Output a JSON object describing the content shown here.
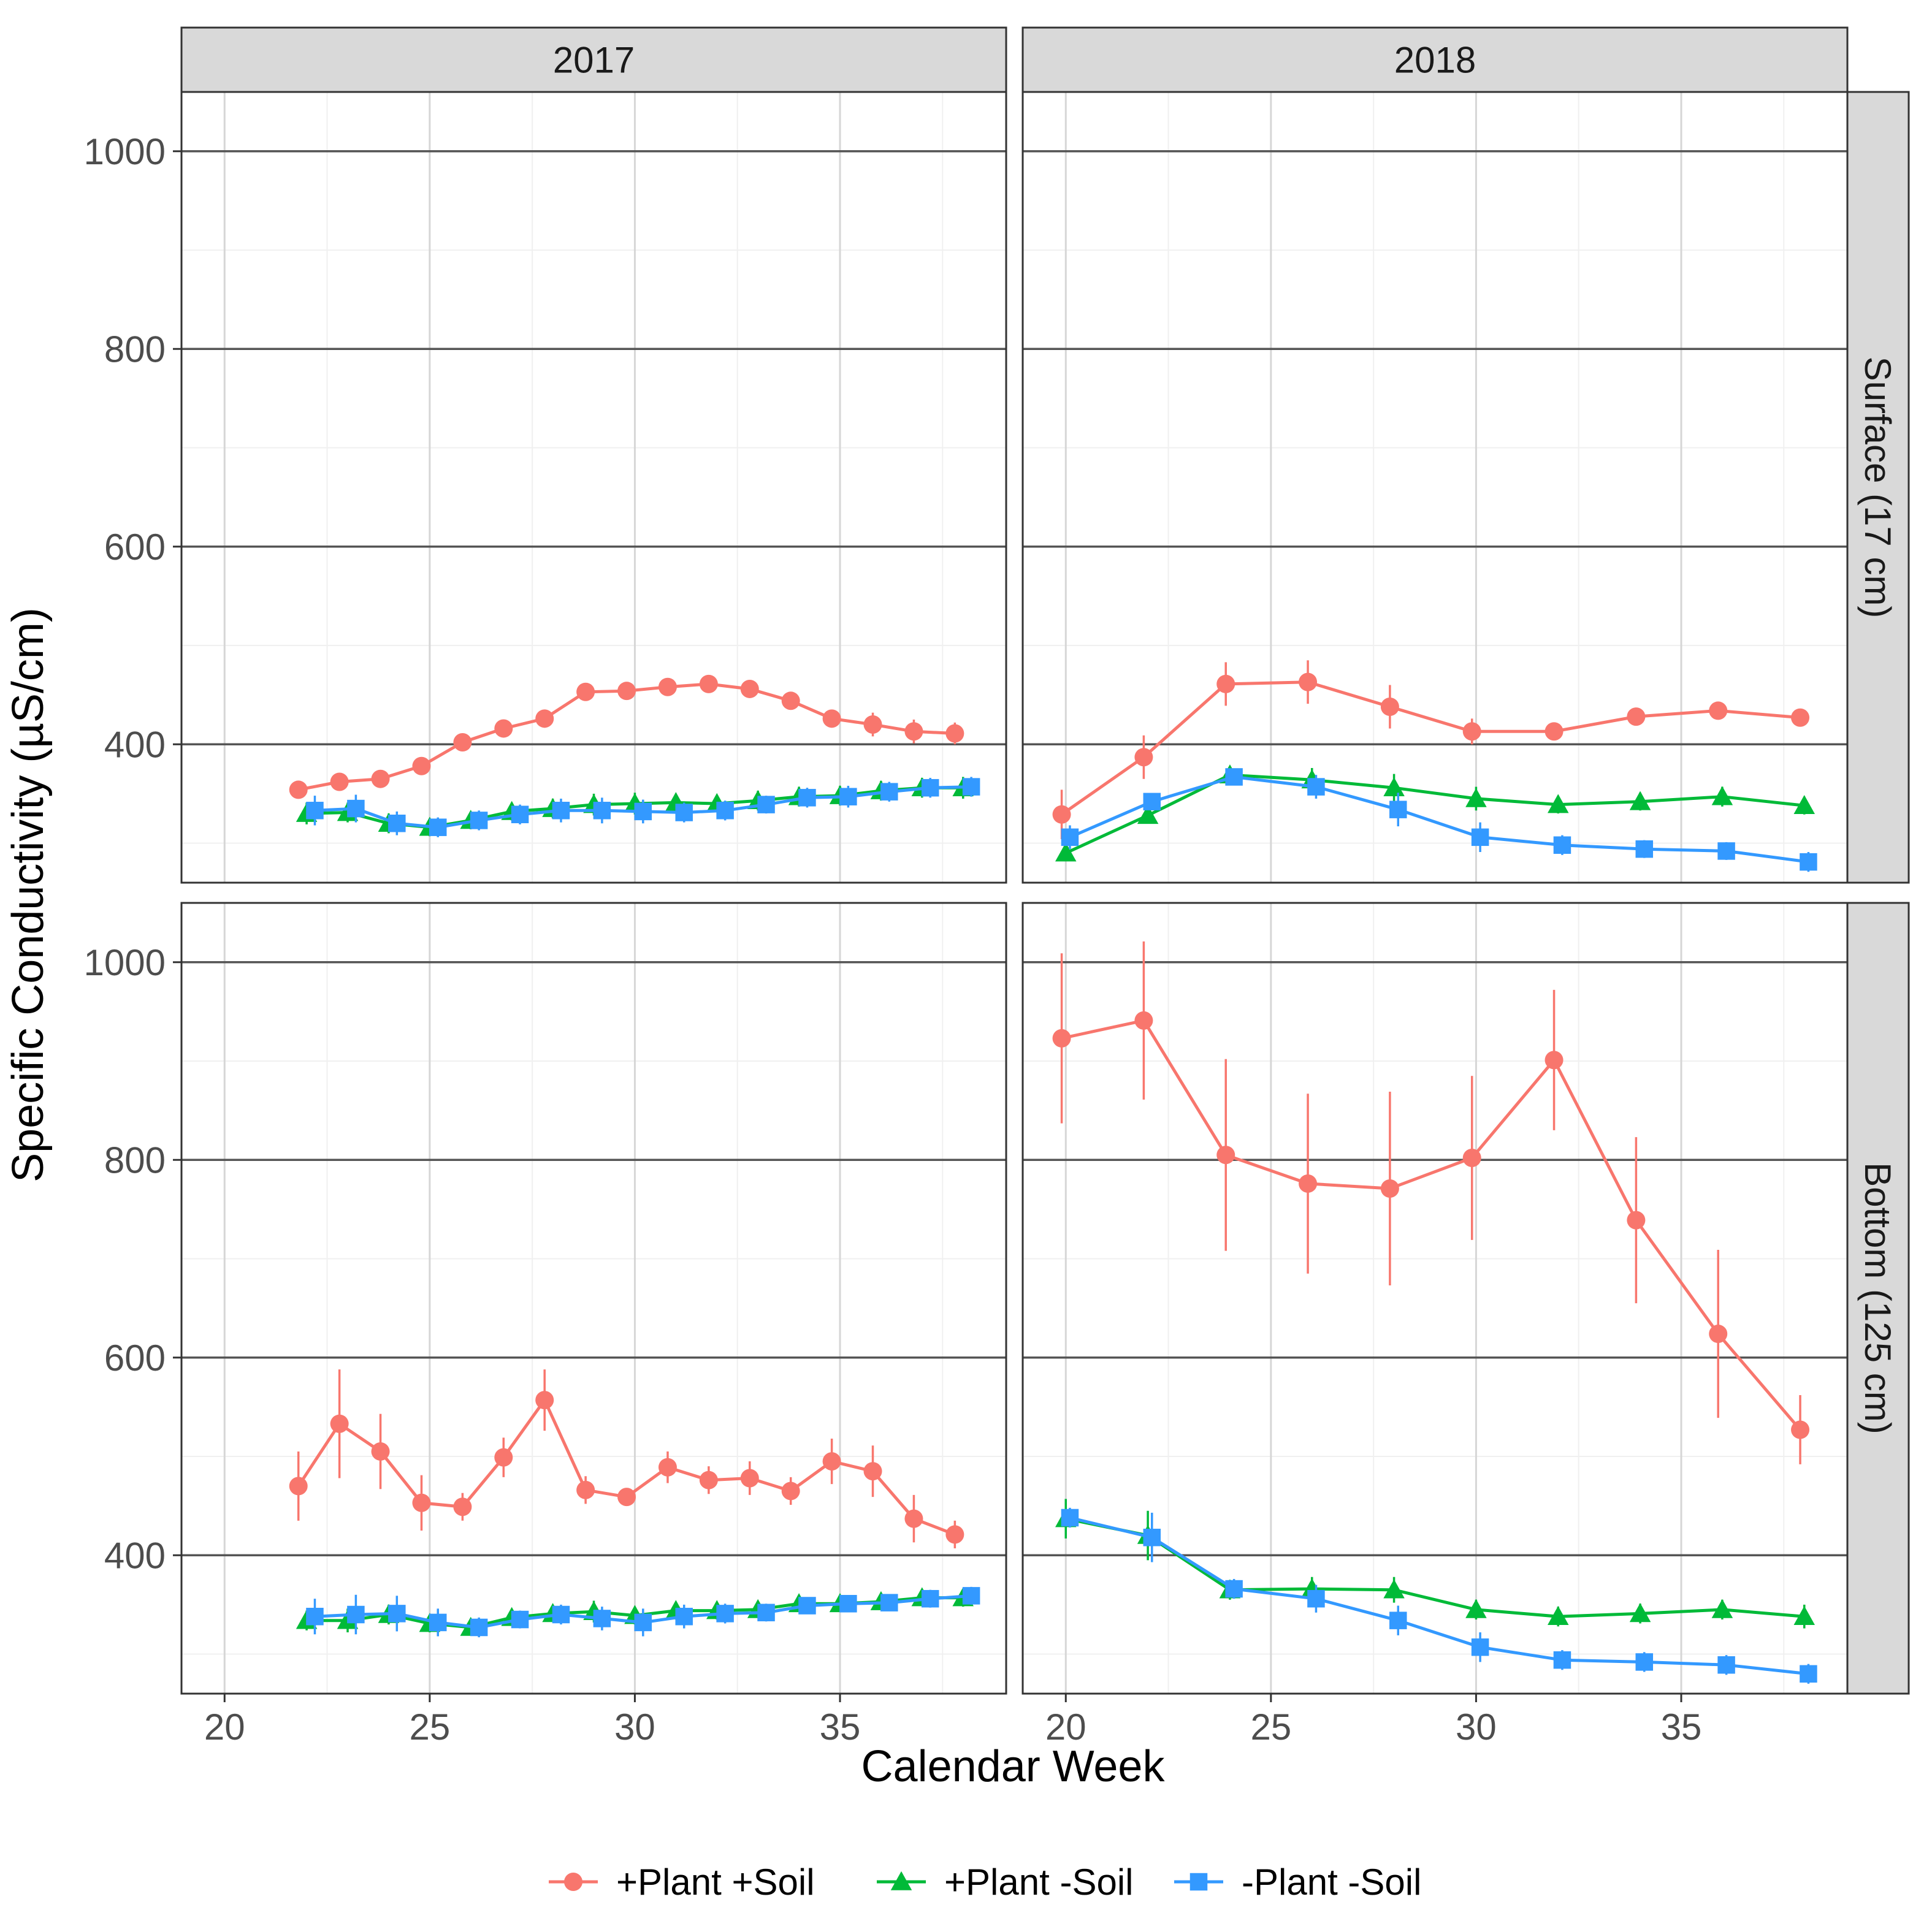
{
  "chart_data": {
    "type": "line",
    "title": "",
    "xlabel": "Calendar Week",
    "ylabel": "Specific Conductivity (µS/cm)",
    "xlim": [
      18.95,
      39.05
    ],
    "ylim": [
      260,
      1060
    ],
    "x_ticks": [
      20,
      25,
      30,
      35
    ],
    "x_tick_labels": [
      "20",
      "25",
      "30",
      "35"
    ],
    "y_ticks": [
      400,
      600,
      800,
      1000
    ],
    "y_tick_labels": [
      "400",
      "600",
      "800",
      "1000"
    ],
    "facet_columns": [
      "2017",
      "2018"
    ],
    "facet_rows": [
      "Surface (17 cm)",
      "Bottom (125 cm)"
    ],
    "legend_position": "bottom",
    "series_legend": [
      {
        "name": "+Plant +Soil",
        "color": "#F8766D",
        "shape": "circle"
      },
      {
        "name": "+Plant -Soil",
        "color": "#00BA38",
        "shape": "triangle"
      },
      {
        "name": "-Plant -Soil",
        "color": "#3399FF",
        "shape": "square"
      }
    ],
    "panels": [
      {
        "column": "2017",
        "row": "Surface (17 cm)",
        "series": [
          {
            "name": "+Plant +Soil",
            "x": [
              21.8,
              22.8,
              23.8,
              24.8,
              25.8,
              26.8,
              27.8,
              28.8,
              29.8,
              30.8,
              31.8,
              32.8,
              33.8,
              34.8,
              35.8,
              36.8,
              37.8
            ],
            "y": [
              354,
              362,
              365,
              378,
              402,
              416,
              426,
              453,
              454,
              458,
              461,
              456,
              444,
              426,
              420,
              413,
              411
            ],
            "err": [
              6,
              6,
              6,
              6,
              5,
              5,
              6,
              5,
              5,
              5,
              5,
              5,
              6,
              8,
              12,
              12,
              11
            ]
          },
          {
            "name": "+Plant -Soil",
            "x": [
              22,
              23,
              24,
              25,
              26,
              27,
              28,
              29,
              30,
              31,
              32,
              33,
              34,
              35,
              36,
              37,
              38
            ],
            "y": [
              330,
              331,
              320,
              316,
              323,
              332,
              335,
              339,
              340,
              341,
              340,
              343,
              347,
              348,
              353,
              356,
              356
            ],
            "err": [
              11,
              10,
              10,
              9,
              9,
              9,
              10,
              11,
              11,
              9,
              9,
              10,
              10,
              10,
              10,
              10,
              11
            ]
          },
          {
            "name": "-Plant -Soil",
            "x": [
              22.2,
              23.2,
              24.2,
              25.2,
              26.2,
              27.2,
              28.2,
              29.2,
              30.2,
              31.2,
              32.2,
              33.2,
              34.2,
              35.2,
              36.2,
              37.2,
              38.2
            ],
            "y": [
              333,
              335,
              320,
              316,
              323,
              329,
              333,
              333,
              332,
              331,
              333,
              339,
              346,
              347,
              352,
              356,
              357
            ],
            "err": [
              15,
              14,
              12,
              10,
              10,
              10,
              12,
              13,
              12,
              10,
              10,
              9,
              10,
              11,
              10,
              10,
              10
            ]
          }
        ]
      },
      {
        "column": "2018",
        "row": "Surface (17 cm)",
        "series": [
          {
            "name": "+Plant +Soil",
            "x": [
              19.9,
              21.9,
              23.9,
              25.9,
              27.9,
              29.9,
              31.9,
              33.9,
              35.9,
              37.9
            ],
            "y": [
              329,
              387,
              461,
              463,
              438,
              413,
              413,
              428,
              434,
              427
            ],
            "err": [
              25,
              22,
              22,
              22,
              22,
              13,
              6,
              6,
              6,
              8
            ]
          },
          {
            "name": "+Plant -Soil",
            "x": [
              20,
              22,
              24,
              26,
              28,
              30,
              32,
              34,
              36,
              38
            ],
            "y": [
              290,
              328,
              369,
              364,
              356,
              345,
              339,
              342,
              347,
              338
            ],
            "err": [
              8,
              8,
              8,
              12,
              14,
              12,
              9,
              9,
              10,
              9
            ]
          },
          {
            "name": "-Plant -Soil",
            "x": [
              20.1,
              22.1,
              24.1,
              26.1,
              28.1,
              30.1,
              32.1,
              34.1,
              36.1,
              38.1
            ],
            "y": [
              306,
              342,
              367,
              357,
              334,
              306,
              298,
              294,
              292,
              281
            ],
            "err": [
              12,
              8,
              8,
              12,
              17,
              15,
              10,
              9,
              9,
              10
            ]
          }
        ]
      },
      {
        "column": "2017",
        "row": "Bottom (125 cm)",
        "series": [
          {
            "name": "+Plant +Soil",
            "x": [
              21.8,
              22.8,
              23.8,
              24.8,
              25.8,
              26.8,
              27.8,
              28.8,
              29.8,
              30.8,
              31.8,
              32.8,
              33.8,
              34.8,
              35.8,
              36.8,
              37.8
            ],
            "y": [
              470,
              533,
              505,
              453,
              449,
              499,
              557,
              466,
              459,
              489,
              476,
              478,
              465,
              495,
              485,
              437,
              421
            ],
            "err": [
              35,
              55,
              38,
              28,
              14,
              20,
              31,
              14,
              9,
              16,
              14,
              17,
              14,
              23,
              26,
              24,
              14
            ]
          },
          {
            "name": "+Plant -Soil",
            "x": [
              22,
              23,
              24,
              25,
              26,
              27,
              28,
              29,
              30,
              31,
              32,
              33,
              34,
              35,
              36,
              37,
              38
            ],
            "y": [
              334,
              334,
              340,
              331,
              327,
              337,
              341,
              343,
              339,
              344,
              344,
              345,
              351,
              351,
              353,
              357,
              357
            ],
            "err": [
              10,
              12,
              10,
              9,
              8,
              8,
              8,
              11,
              9,
              9,
              9,
              8,
              8,
              8,
              8,
              8,
              9
            ]
          },
          {
            "name": "-Plant -Soil",
            "x": [
              22.2,
              23.2,
              24.2,
              25.2,
              26.2,
              27.2,
              28.2,
              29.2,
              30.2,
              31.2,
              32.2,
              33.2,
              34.2,
              35.2,
              36.2,
              37.2,
              38.2
            ],
            "y": [
              338,
              340,
              341,
              332,
              327,
              335,
              340,
              336,
              332,
              338,
              341,
              342,
              349,
              351,
              352,
              356,
              359
            ],
            "err": [
              18,
              20,
              18,
              14,
              10,
              9,
              10,
              12,
              14,
              12,
              10,
              9,
              8,
              8,
              8,
              9,
              9
            ]
          }
        ]
      },
      {
        "column": "2018",
        "row": "Bottom (125 cm)",
        "series": [
          {
            "name": "+Plant +Soil",
            "x": [
              19.9,
              21.9,
              23.9,
              25.9,
              27.9,
              29.9,
              31.9,
              33.9,
              35.9,
              37.9
            ],
            "y": [
              923,
              941,
              805,
              776,
              771,
              802,
              901,
              739,
              624,
              527
            ],
            "err": [
              86,
              80,
              97,
              91,
              98,
              83,
              71,
              84,
              85,
              35
            ]
          },
          {
            "name": "+Plant -Soil",
            "x": [
              20,
              22,
              24,
              26,
              28,
              30,
              32,
              34,
              36,
              38
            ],
            "y": [
              437,
              420,
              365,
              366,
              365,
              345,
              338,
              341,
              345,
              338
            ],
            "err": [
              20,
              25,
              10,
              12,
              13,
              10,
              10,
              10,
              10,
              12
            ]
          },
          {
            "name": "-Plant -Soil",
            "x": [
              20.1,
              22.1,
              24.1,
              26.1,
              28.1,
              30.1,
              32.1,
              34.1,
              36.1,
              38.1
            ],
            "y": [
              438,
              418,
              366,
              356,
              334,
              307,
              294,
              292,
              289,
              280
            ],
            "err": [
              10,
              25,
              10,
              14,
              15,
              15,
              10,
              10,
              10,
              10
            ]
          }
        ]
      }
    ]
  }
}
